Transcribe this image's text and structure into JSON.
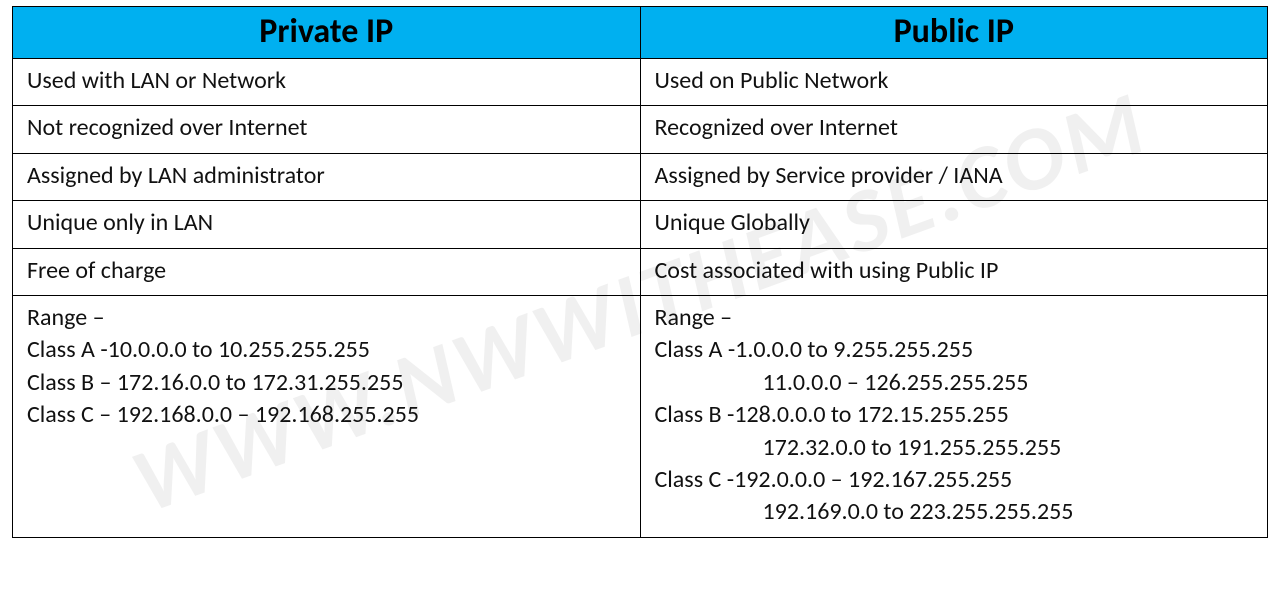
{
  "type": "table",
  "watermark_text": "WWW.NWWITHEASE.COM",
  "columns": [
    "Private IP",
    "Public IP"
  ],
  "header_bg": "#00b0f0",
  "header_fontsize": 34,
  "header_fontweight": 700,
  "cell_fontsize": 24,
  "border_color": "#000000",
  "background_color": "#ffffff",
  "watermark_color_rgba": "rgba(0,0,0,0.06)",
  "rows": [
    {
      "private": [
        "Used with LAN or Network"
      ],
      "public": [
        "Used on Public Network"
      ]
    },
    {
      "private": [
        "Not recognized over Internet"
      ],
      "public": [
        "Recognized over Internet"
      ]
    },
    {
      "private": [
        "Assigned by LAN administrator"
      ],
      "public": [
        "Assigned by Service provider / IANA"
      ]
    },
    {
      "private": [
        "Unique only in LAN"
      ],
      "public": [
        "Unique Globally"
      ]
    },
    {
      "private": [
        "Free of charge"
      ],
      "public": [
        "Cost associated with using Public IP"
      ]
    },
    {
      "private": [
        "Range –",
        "Class A -10.0.0.0 to 10.255.255.255",
        "Class B – 172.16.0.0 to 172.31.255.255",
        "Class C – 192.168.0.0 – 192.168.255.255"
      ],
      "public": [
        "Range –",
        "Class A -1.0.0.0 to 9.255.255.255",
        "11.0.0.0 – 126.255.255.255",
        "Class B -128.0.0.0 to 172.15.255.255",
        "172.32.0.0 to 191.255.255.255",
        "Class C -192.0.0.0 – 192.167.255.255",
        "192.169.0.0 to 223.255.255.255"
      ],
      "public_indent_lines": [
        2,
        4,
        6
      ]
    }
  ]
}
